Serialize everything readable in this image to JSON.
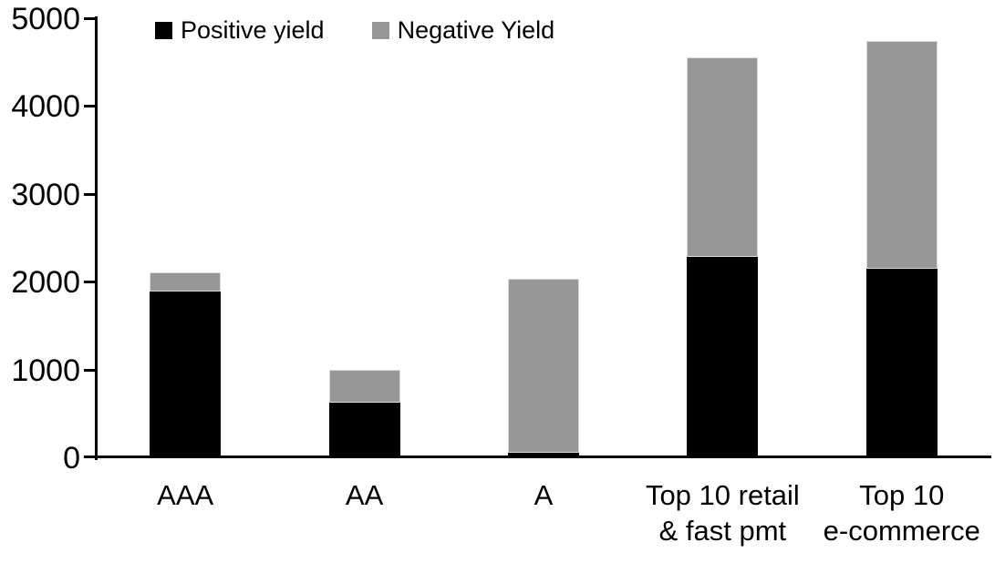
{
  "chart_data": {
    "type": "bar",
    "stacked": true,
    "title": "",
    "xlabel": "",
    "ylabel": "",
    "categories": [
      "AAA",
      "AA",
      "A",
      "Top 10 retail & fast pmt",
      "Top 10 e-commerce"
    ],
    "category_lines": [
      [
        "AAA"
      ],
      [
        "AA"
      ],
      [
        "A"
      ],
      [
        "Top 10 retail",
        "& fast pmt"
      ],
      [
        "Top 10",
        "e-commerce"
      ]
    ],
    "series": [
      {
        "name": "Positive yield",
        "color": "#000000",
        "values": [
          1890,
          620,
          50,
          2280,
          2150
        ]
      },
      {
        "name": "Negative Yield",
        "color": "#979797",
        "values": [
          220,
          380,
          1980,
          2270,
          2590
        ]
      }
    ],
    "ylim": [
      0,
      5000
    ],
    "yticks": [
      0,
      1000,
      2000,
      3000,
      4000,
      5000
    ],
    "grid": false,
    "legend_position": "top"
  },
  "colors": {
    "positive": "#000000",
    "negative": "#979797",
    "axis": "#000000",
    "background": "#ffffff",
    "negative_border": "#d9d9d9"
  }
}
